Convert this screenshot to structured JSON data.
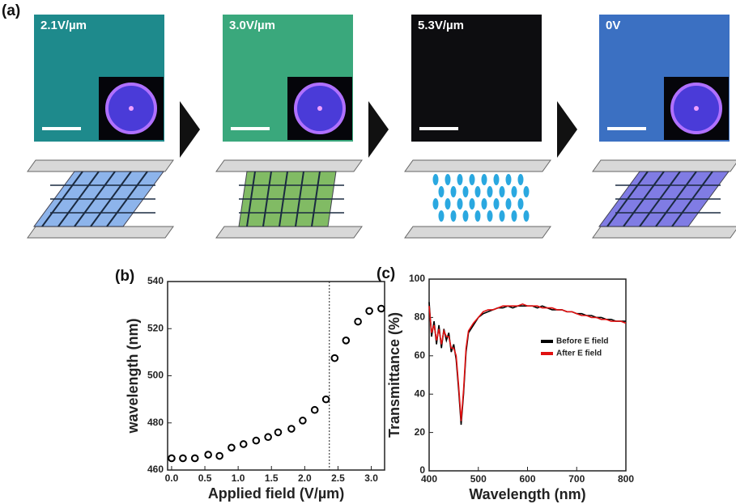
{
  "panel_a": {
    "label": "(a)",
    "frames": [
      "2.1V/µm",
      "3.0V/µm",
      "5.3V/µm",
      "0V"
    ]
  },
  "chart_data": [
    {
      "type": "scatter",
      "panel": "(b)",
      "x_label": "Applied field (V/µm)",
      "y_label": "wavelength (nm)",
      "x": [
        0.0,
        0.17,
        0.35,
        0.55,
        0.72,
        0.9,
        1.08,
        1.27,
        1.45,
        1.6,
        1.8,
        1.97,
        2.15,
        2.32,
        2.45,
        2.62,
        2.8,
        2.97,
        3.15
      ],
      "values": [
        465,
        465,
        465,
        466.5,
        466,
        469.5,
        471,
        472.5,
        474,
        476,
        477.5,
        481,
        485.5,
        490,
        507.5,
        515,
        523,
        527.5,
        528.5
      ],
      "color": "#000000",
      "vline": 2.37,
      "xlim": [
        -0.06,
        3.2
      ],
      "xticks": [
        {
          "value": 0,
          "label": "0.0"
        },
        0.5,
        {
          "value": 1,
          "label": "1.0"
        },
        1.5,
        {
          "value": 2,
          "label": "2.0"
        },
        2.5,
        {
          "value": 3,
          "label": "3.0"
        }
      ],
      "ylim": [
        460,
        540
      ],
      "yticks": [
        460,
        480,
        500,
        520,
        540
      ]
    },
    {
      "type": "line",
      "panel": "(c)",
      "x_label": "Wavelength (nm)",
      "y_label": "Transmittance (%)",
      "x": [
        400,
        405,
        410,
        415,
        420,
        425,
        430,
        435,
        440,
        445,
        450,
        455,
        460,
        465,
        470,
        475,
        480,
        490,
        500,
        510,
        520,
        530,
        540,
        550,
        560,
        570,
        580,
        590,
        600,
        610,
        620,
        630,
        640,
        650,
        660,
        670,
        680,
        690,
        700,
        710,
        720,
        730,
        740,
        750,
        760,
        770,
        780,
        790,
        800
      ],
      "series": [
        {
          "name": "Before E field",
          "color": "#000000",
          "values": [
            88,
            70,
            78,
            66,
            76,
            64,
            74,
            68,
            72,
            62,
            66,
            58,
            42,
            24,
            40,
            62,
            72,
            76,
            80,
            82,
            83,
            84,
            85,
            85,
            86,
            85,
            86,
            86,
            86,
            86,
            85,
            86,
            85,
            84,
            84,
            84,
            83,
            83,
            82,
            82,
            81,
            81,
            80,
            80,
            79,
            79,
            78,
            78,
            78
          ]
        },
        {
          "name": "After E field",
          "color": "#e01010",
          "values": [
            86,
            72,
            76,
            68,
            74,
            66,
            73,
            70,
            70,
            64,
            64,
            60,
            44,
            26,
            42,
            64,
            73,
            77,
            80,
            83,
            84,
            84,
            85,
            86,
            86,
            86,
            86,
            87,
            86,
            86,
            86,
            85,
            85,
            85,
            84,
            84,
            83,
            83,
            82,
            81,
            81,
            80,
            80,
            79,
            79,
            78,
            78,
            78,
            77
          ]
        }
      ],
      "xlim": [
        400,
        800
      ],
      "xticks": [
        400,
        500,
        600,
        700,
        800
      ],
      "ylim": [
        0,
        100
      ],
      "yticks": [
        0,
        20,
        40,
        60,
        80,
        100
      ]
    }
  ]
}
